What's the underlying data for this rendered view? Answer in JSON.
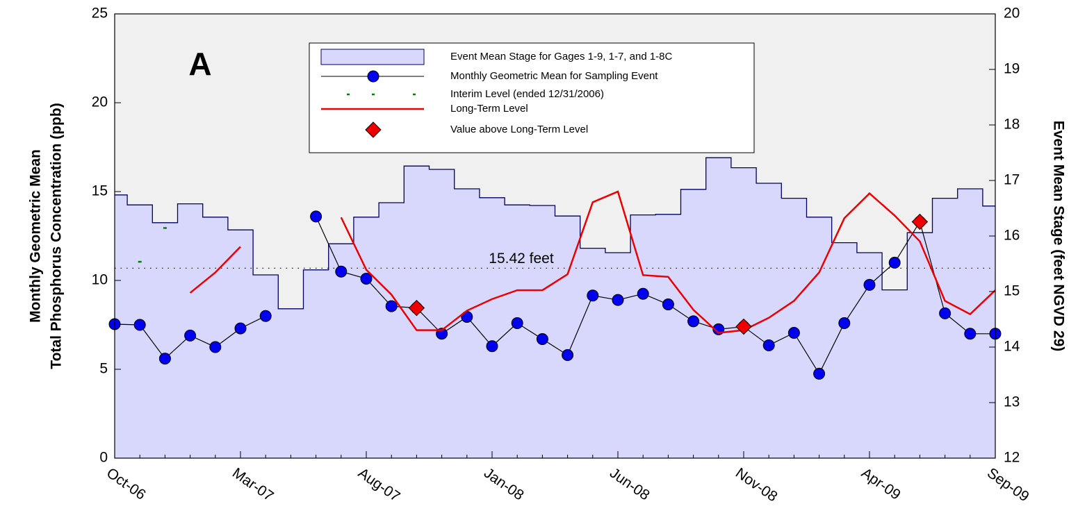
{
  "chart_data": {
    "type": "line",
    "panel_label": "A",
    "ylabel": [
      "Monthly Geometric Mean",
      "Total Phosphorus Concentration (ppb)"
    ],
    "y2label": "Event Mean Stage (feet NGVD 29)",
    "categories": [
      "Oct-06",
      null,
      null,
      null,
      null,
      "Mar-07",
      null,
      null,
      null,
      null,
      "Aug-07",
      null,
      null,
      null,
      null,
      "Jan-08",
      null,
      null,
      null,
      null,
      "Jun-08",
      null,
      null,
      null,
      null,
      "Nov-08",
      null,
      null,
      null,
      null,
      "Apr-09",
      null,
      null,
      null,
      null,
      "Sep-09"
    ],
    "ylim": [
      0,
      25
    ],
    "yticks": [
      0,
      5,
      10,
      15,
      20,
      25
    ],
    "y2lim": [
      12,
      20
    ],
    "y2ticks": [
      12,
      13,
      14,
      15,
      16,
      17,
      18,
      19,
      20
    ],
    "reference_line": {
      "value": 15.42,
      "label": "15.42 feet",
      "axis": "y2"
    },
    "series": [
      {
        "name": "Event Mean Stage for Gages  1-9, 1-7, and 1-8C",
        "type": "step-area",
        "axis": "y2",
        "color": "#d8d8fc",
        "values": [
          16.74,
          16.56,
          16.24,
          16.58,
          16.34,
          16.11,
          15.3,
          14.69,
          15.39,
          15.86,
          16.34,
          16.6,
          17.26,
          17.2,
          16.85,
          16.69,
          16.56,
          16.55,
          16.36,
          15.78,
          15.7,
          16.38,
          16.39,
          16.84,
          17.41,
          17.23,
          16.95,
          16.68,
          16.34,
          15.88,
          15.7,
          15.03,
          16.06,
          16.68,
          16.85,
          16.54
        ]
      },
      {
        "name": "Monthly Geometric Mean for Sampling Event",
        "type": "line-marker",
        "color": "#0000ee",
        "values": [
          7.54,
          7.5,
          5.6,
          6.9,
          6.25,
          7.3,
          8.0,
          null,
          13.6,
          10.5,
          10.1,
          8.55,
          8.45,
          7.0,
          7.95,
          6.3,
          7.6,
          6.7,
          5.8,
          9.15,
          8.9,
          9.25,
          8.65,
          7.7,
          7.25,
          7.4,
          6.35,
          7.05,
          4.75,
          7.6,
          9.75,
          11.0,
          13.3,
          8.15,
          7.0,
          7.0
        ]
      },
      {
        "name": "Interim Level (ended 12/31/2006)",
        "type": "dash",
        "color": "#008000",
        "values": [
          null,
          11.05,
          12.95,
          null,
          null,
          null,
          null,
          null,
          null,
          null,
          null,
          null,
          null,
          null,
          null,
          null,
          null,
          null,
          null,
          null,
          null,
          null,
          null,
          null,
          null,
          null,
          null,
          null,
          null,
          null,
          null,
          null,
          null,
          null,
          null,
          null
        ]
      },
      {
        "name": "Long-Term Level",
        "type": "line",
        "color": "#ee0000",
        "values": [
          null,
          null,
          null,
          9.3,
          10.45,
          11.9,
          null,
          null,
          null,
          13.55,
          10.6,
          9.2,
          7.2,
          7.2,
          8.3,
          8.95,
          9.45,
          9.45,
          10.35,
          14.4,
          15.0,
          10.3,
          10.2,
          8.35,
          7.05,
          7.2,
          7.9,
          8.85,
          10.45,
          13.5,
          14.9,
          13.65,
          12.2,
          8.85,
          8.1,
          9.45
        ]
      },
      {
        "name": "Value above Long-Term Level",
        "type": "diamond",
        "color": "#ee0000",
        "values": [
          null,
          null,
          null,
          null,
          null,
          null,
          null,
          null,
          null,
          null,
          null,
          null,
          8.45,
          null,
          null,
          null,
          null,
          null,
          null,
          null,
          null,
          null,
          null,
          null,
          null,
          7.4,
          null,
          null,
          null,
          null,
          null,
          null,
          13.3,
          null,
          null,
          null
        ]
      }
    ]
  }
}
